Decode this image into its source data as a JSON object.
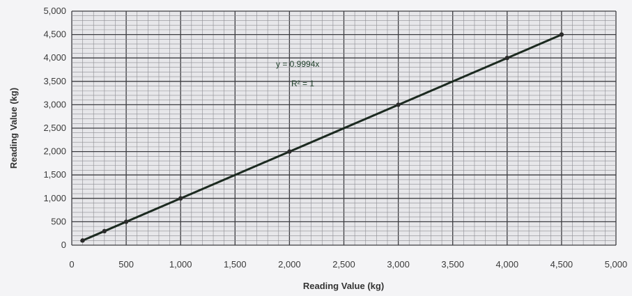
{
  "chart_data": {
    "type": "scatter",
    "title": "",
    "xlabel": "Reading Value (kg)",
    "ylabel": "Reading Value (kg)",
    "xlim": [
      0,
      5000
    ],
    "ylim": [
      0,
      5000
    ],
    "x_ticks": [
      0,
      500,
      1000,
      1500,
      2000,
      2500,
      3000,
      3500,
      4000,
      4500,
      5000
    ],
    "y_ticks": [
      0,
      500,
      1000,
      1500,
      2000,
      2500,
      3000,
      3500,
      4000,
      4500,
      5000
    ],
    "x_tick_labels": [
      "0",
      "500",
      "1,000",
      "1,500",
      "2,000",
      "2,500",
      "3,000",
      "3,500",
      "4,000",
      "4,500",
      "5,000"
    ],
    "y_tick_labels": [
      "0",
      "500",
      "1,000",
      "1,500",
      "2,000",
      "2,500",
      "3,000",
      "3,500",
      "4,000",
      "4,500",
      "5,000"
    ],
    "grid": true,
    "series": [
      {
        "x": [
          100,
          300,
          500,
          1000,
          2000,
          3000,
          4000,
          4500
        ],
        "y": [
          100,
          300,
          500,
          1000,
          2000,
          3000,
          4000,
          4500
        ],
        "color": "#2b2b2b"
      }
    ],
    "trendline": {
      "type": "linear",
      "x_range": [
        80,
        4500
      ],
      "slope": 0.9994,
      "intercept": 0,
      "equation_label": "y = 0.9994x",
      "r2_label": "R² = 1",
      "color": "#1c2a20"
    },
    "colors": {
      "plot_background": "#e7e7ea",
      "grid_minor": "#8d8d92",
      "grid_major": "#3c3c40"
    }
  }
}
